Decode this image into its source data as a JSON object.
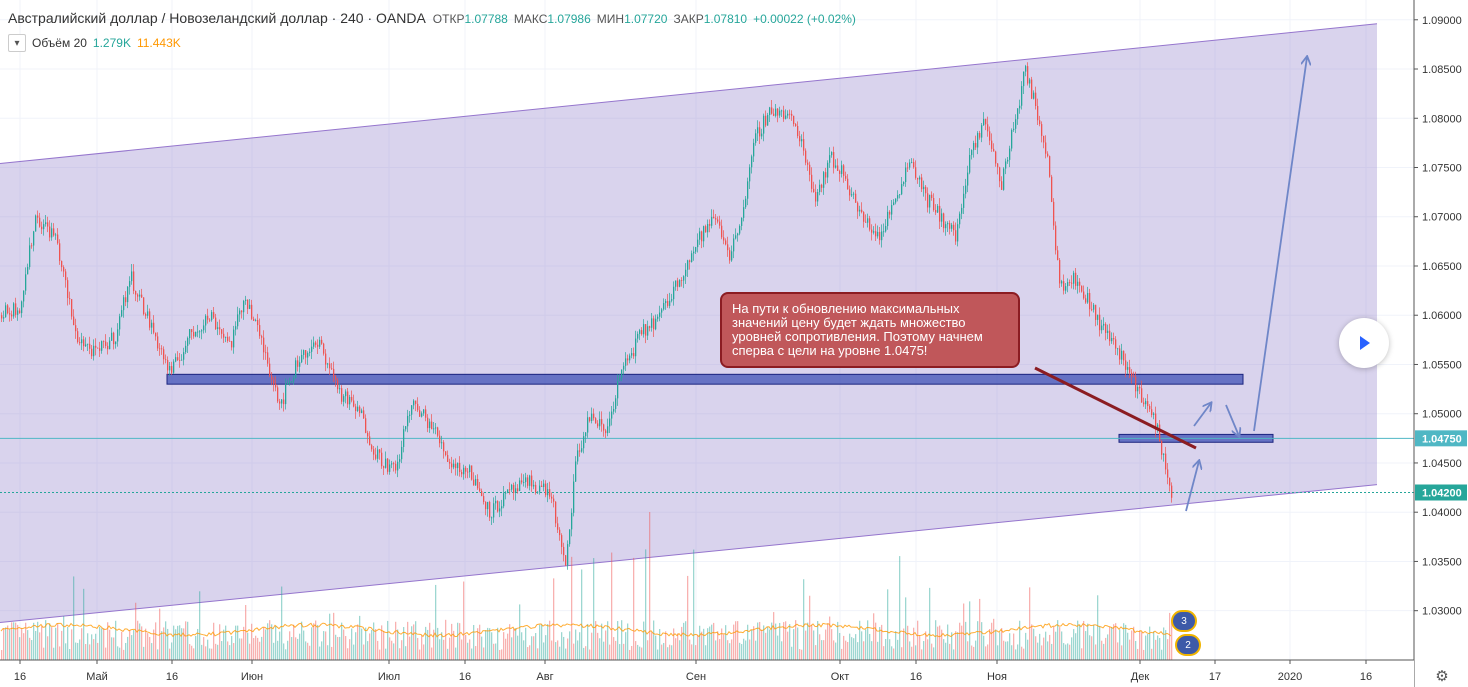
{
  "header": {
    "symbol": "Австралийский доллар / Новозеландский доллар · 240 · OANDA",
    "open_label": "ОТКР",
    "open": "1.07788",
    "high_label": "МАКС",
    "high": "1.07986",
    "low_label": "МИН",
    "low": "1.07720",
    "close_label": "ЗАКР",
    "close": "1.07810",
    "change": "+0.00022 (+0.02%)"
  },
  "volume_legend": {
    "label": "Объём 20",
    "value1": "1.279K",
    "value2": "11.443K"
  },
  "annotation": {
    "text": "На пути к обновлению максимальных значений цену будет ждать множество уровней сопротивления. Поэтому начнем сперва с цели на уровне 1.0475!"
  },
  "badges": [
    "3",
    "2"
  ],
  "icons": {
    "play": "play-icon",
    "settings": "gear-icon",
    "collapse": "chevron-down-icon"
  },
  "colors": {
    "up": "#26a69a",
    "down": "#ef5350",
    "channel": "#9c8cd0",
    "zone": "#3f51b5",
    "arrow": "#6f86c8",
    "price_line": "#4fb7c4",
    "current_price": "#26a69a"
  },
  "chart_data": {
    "type": "candlestick",
    "symbol": "AUDNZD",
    "timeframe": "240",
    "ylim": [
      1.0255,
      1.0915
    ],
    "y_ticks": [
      "1.09000",
      "1.08500",
      "1.08000",
      "1.07500",
      "1.07000",
      "1.06500",
      "1.06000",
      "1.05500",
      "1.05000",
      "1.04500",
      "1.04000",
      "1.03500",
      "1.03000"
    ],
    "x_ticks": [
      "16",
      "Май",
      "16",
      "Июн",
      "Июл",
      "16",
      "Авг",
      "Сен",
      "Окт",
      "16",
      "Ноя",
      "Дек",
      "17",
      "2020",
      "16"
    ],
    "price_labels": {
      "level": "1.04750",
      "current": "1.04200"
    },
    "series": [
      {
        "name": "AUDNZD",
        "path": [
          [
            0,
            1.06
          ],
          [
            20,
            1.061
          ],
          [
            35,
            1.07
          ],
          [
            55,
            1.068
          ],
          [
            75,
            1.058
          ],
          [
            95,
            1.056
          ],
          [
            115,
            1.058
          ],
          [
            130,
            1.064
          ],
          [
            150,
            1.059
          ],
          [
            170,
            1.054
          ],
          [
            190,
            1.058
          ],
          [
            210,
            1.06
          ],
          [
            230,
            1.057
          ],
          [
            245,
            1.062
          ],
          [
            265,
            1.056
          ],
          [
            280,
            1.051
          ],
          [
            300,
            1.056
          ],
          [
            320,
            1.057
          ],
          [
            340,
            1.052
          ],
          [
            360,
            1.05
          ],
          [
            375,
            1.046
          ],
          [
            395,
            1.044
          ],
          [
            410,
            1.051
          ],
          [
            430,
            1.049
          ],
          [
            450,
            1.045
          ],
          [
            470,
            1.044
          ],
          [
            490,
            1.04
          ],
          [
            510,
            1.042
          ],
          [
            530,
            1.043
          ],
          [
            550,
            1.042
          ],
          [
            565,
            1.034
          ],
          [
            575,
            1.045
          ],
          [
            590,
            1.05
          ],
          [
            605,
            1.048
          ],
          [
            620,
            1.054
          ],
          [
            640,
            1.058
          ],
          [
            660,
            1.06
          ],
          [
            680,
            1.064
          ],
          [
            700,
            1.068
          ],
          [
            715,
            1.07
          ],
          [
            730,
            1.066
          ],
          [
            745,
            1.072
          ],
          [
            755,
            1.078
          ],
          [
            770,
            1.081
          ],
          [
            790,
            1.08
          ],
          [
            800,
            1.078
          ],
          [
            815,
            1.072
          ],
          [
            830,
            1.076
          ],
          [
            845,
            1.074
          ],
          [
            860,
            1.07
          ],
          [
            880,
            1.068
          ],
          [
            895,
            1.072
          ],
          [
            910,
            1.076
          ],
          [
            925,
            1.072
          ],
          [
            940,
            1.07
          ],
          [
            955,
            1.068
          ],
          [
            970,
            1.076
          ],
          [
            985,
            1.08
          ],
          [
            1000,
            1.073
          ],
          [
            1015,
            1.08
          ],
          [
            1025,
            1.085
          ],
          [
            1040,
            1.079
          ],
          [
            1048,
            1.076
          ],
          [
            1052,
            1.07
          ],
          [
            1060,
            1.063
          ],
          [
            1070,
            1.064
          ],
          [
            1085,
            1.062
          ],
          [
            1100,
            1.059
          ],
          [
            1115,
            1.057
          ],
          [
            1130,
            1.054
          ],
          [
            1145,
            1.051
          ],
          [
            1155,
            1.049
          ],
          [
            1162,
            1.046
          ],
          [
            1170,
            1.042
          ]
        ]
      }
    ],
    "channel": {
      "upper": [
        [
          0,
          1.0754
        ],
        [
          1377,
          1.0896
        ]
      ],
      "lower": [
        [
          0,
          1.0288
        ],
        [
          1377,
          1.0428
        ]
      ]
    },
    "zones": [
      {
        "x": [
          167,
          1243
        ],
        "y": [
          1.053,
          1.054
        ]
      },
      {
        "x": [
          1119,
          1273
        ],
        "y": [
          1.0471,
          1.0479
        ]
      }
    ],
    "volume": {
      "has_ma": true
    }
  }
}
